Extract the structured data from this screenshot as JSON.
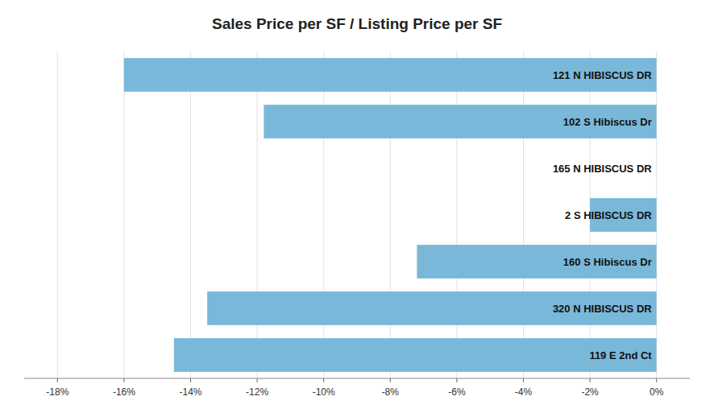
{
  "chart_data": {
    "type": "bar",
    "orientation": "horizontal",
    "title": "Sales Price per SF / Listing Price per SF",
    "categories": [
      "119 E 2nd Ct",
      "320 N HIBISCUS DR",
      "160 S Hibiscus Dr",
      "2 S HIBISCUS DR",
      "165 N HIBISCUS DR",
      "102 S Hibiscus Dr",
      "121 N HIBISCUS DR"
    ],
    "values": [
      -0.145,
      -0.135,
      -0.072,
      -0.02,
      0.0,
      -0.118,
      -0.16
    ],
    "color": "#7ab8d9",
    "xlim": [
      -0.19,
      0.01
    ],
    "xticks": [
      {
        "value": -0.18,
        "label": "-18%"
      },
      {
        "value": -0.16,
        "label": "-16%"
      },
      {
        "value": -0.14,
        "label": "-14%"
      },
      {
        "value": -0.12,
        "label": "-12%"
      },
      {
        "value": -0.1,
        "label": "-10%"
      },
      {
        "value": -0.08,
        "label": "-8%"
      },
      {
        "value": -0.06,
        "label": "-6%"
      },
      {
        "value": -0.04,
        "label": "-4%"
      },
      {
        "value": -0.02,
        "label": "-2%"
      },
      {
        "value": 0.0,
        "label": "0%"
      }
    ],
    "grid": true
  }
}
